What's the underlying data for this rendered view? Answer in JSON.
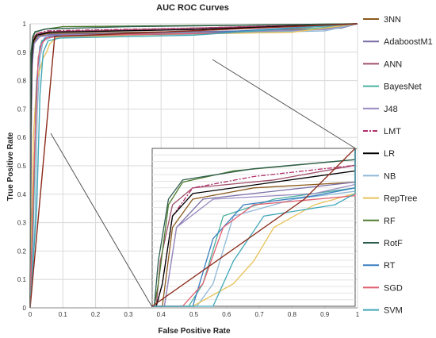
{
  "chart_data": {
    "type": "line",
    "title": "AUC ROC Curves",
    "xlabel": "False Positive Rate",
    "ylabel": "True Positive Rate",
    "xlim": [
      0,
      1
    ],
    "ylim": [
      0,
      1
    ],
    "xticks": [
      "0",
      "0.1",
      "0.2",
      "0.3",
      "0.4",
      "0.5",
      "0.6",
      "0.7",
      "0.8",
      "0.9",
      "1"
    ],
    "yticks": [
      "0",
      "0.1",
      "0.2",
      "0.3",
      "0.4",
      "0.5",
      "0.6",
      "0.7",
      "0.8",
      "0.9",
      "1"
    ],
    "grid": true,
    "legend": "right",
    "inset": "zoomed view of the top-left corner",
    "series": [
      {
        "name": "3NN",
        "color": "#8B5A1E",
        "dash": "",
        "points": [
          [
            0,
            0
          ],
          [
            0.002,
            0.5
          ],
          [
            0.005,
            0.85
          ],
          [
            0.01,
            0.93
          ],
          [
            0.02,
            0.955
          ],
          [
            0.05,
            0.965
          ],
          [
            0.3,
            0.97
          ],
          [
            0.7,
            0.975
          ],
          [
            0.9,
            0.985
          ],
          [
            1,
            1
          ]
        ]
      },
      {
        "name": "AdaboostM1",
        "color": "#7A6FA8",
        "dash": "",
        "points": [
          [
            0,
            0
          ],
          [
            0.003,
            0.6
          ],
          [
            0.006,
            0.85
          ],
          [
            0.012,
            0.93
          ],
          [
            0.025,
            0.955
          ],
          [
            0.06,
            0.962
          ],
          [
            0.4,
            0.97
          ],
          [
            0.8,
            0.978
          ],
          [
            0.95,
            0.985
          ],
          [
            1,
            1
          ]
        ]
      },
      {
        "name": "ANN",
        "color": "#A0516A",
        "dash": "",
        "points": [
          [
            0,
            0
          ],
          [
            0.002,
            0.65
          ],
          [
            0.004,
            0.9
          ],
          [
            0.01,
            0.95
          ],
          [
            0.02,
            0.965
          ],
          [
            0.06,
            0.972
          ],
          [
            0.5,
            0.985
          ],
          [
            1,
            1
          ]
        ]
      },
      {
        "name": "BayesNet",
        "color": "#4AB0A0",
        "dash": "",
        "points": [
          [
            0,
            0
          ],
          [
            0.01,
            0.3
          ],
          [
            0.018,
            0.7
          ],
          [
            0.025,
            0.88
          ],
          [
            0.035,
            0.94
          ],
          [
            0.06,
            0.955
          ],
          [
            0.3,
            0.965
          ],
          [
            0.8,
            0.975
          ],
          [
            1,
            1
          ]
        ]
      },
      {
        "name": "J48",
        "color": "#9A8BC0",
        "dash": "",
        "points": [
          [
            0,
            0
          ],
          [
            0.003,
            0.55
          ],
          [
            0.006,
            0.85
          ],
          [
            0.012,
            0.93
          ],
          [
            0.03,
            0.955
          ],
          [
            0.08,
            0.96
          ],
          [
            0.5,
            0.968
          ],
          [
            0.9,
            0.98
          ],
          [
            1,
            1
          ]
        ]
      },
      {
        "name": "LMT",
        "color": "#B0306A",
        "dash": "6 2 2 2",
        "points": [
          [
            0,
            0
          ],
          [
            0.002,
            0.6
          ],
          [
            0.005,
            0.88
          ],
          [
            0.01,
            0.94
          ],
          [
            0.02,
            0.965
          ],
          [
            0.05,
            0.975
          ],
          [
            0.5,
            0.985
          ],
          [
            1,
            1
          ]
        ]
      },
      {
        "name": "LR",
        "color": "#000000",
        "dash": "",
        "points": [
          [
            0,
            0
          ],
          [
            0.002,
            0.62
          ],
          [
            0.005,
            0.88
          ],
          [
            0.01,
            0.94
          ],
          [
            0.02,
            0.96
          ],
          [
            0.06,
            0.97
          ],
          [
            0.5,
            0.98
          ],
          [
            1,
            1
          ]
        ]
      },
      {
        "name": "NB",
        "color": "#8FB8D8",
        "dash": "",
        "points": [
          [
            0,
            0
          ],
          [
            0.015,
            0.3
          ],
          [
            0.022,
            0.7
          ],
          [
            0.03,
            0.88
          ],
          [
            0.04,
            0.94
          ],
          [
            0.07,
            0.955
          ],
          [
            0.4,
            0.962
          ],
          [
            0.9,
            0.975
          ],
          [
            1,
            1
          ]
        ]
      },
      {
        "name": "RepTree",
        "color": "#E8C25A",
        "dash": "",
        "points": [
          [
            0,
            0
          ],
          [
            0.01,
            0.6
          ],
          [
            0.02,
            0.8
          ],
          [
            0.04,
            0.88
          ],
          [
            0.05,
            0.9
          ],
          [
            0.06,
            0.93
          ],
          [
            0.08,
            0.95
          ],
          [
            0.3,
            0.96
          ],
          [
            0.8,
            0.97
          ],
          [
            1,
            1
          ]
        ]
      },
      {
        "name": "RF",
        "color": "#4E7A2E",
        "dash": "",
        "points": [
          [
            0,
            0
          ],
          [
            0.001,
            0.6
          ],
          [
            0.003,
            0.88
          ],
          [
            0.008,
            0.95
          ],
          [
            0.015,
            0.97
          ],
          [
            0.04,
            0.98
          ],
          [
            0.1,
            0.99
          ],
          [
            0.6,
            0.995
          ],
          [
            1,
            1
          ]
        ]
      },
      {
        "name": "RotF",
        "color": "#2E5E4E",
        "dash": "",
        "points": [
          [
            0,
            0
          ],
          [
            0.001,
            0.65
          ],
          [
            0.003,
            0.9
          ],
          [
            0.008,
            0.955
          ],
          [
            0.015,
            0.972
          ],
          [
            0.05,
            0.982
          ],
          [
            0.3,
            0.99
          ],
          [
            1,
            1
          ]
        ]
      },
      {
        "name": "RT",
        "color": "#3A7FC0",
        "dash": "",
        "points": [
          [
            0,
            0
          ],
          [
            0.01,
            0.4
          ],
          [
            0.02,
            0.8
          ],
          [
            0.03,
            0.92
          ],
          [
            0.045,
            0.95
          ],
          [
            0.08,
            0.958
          ],
          [
            0.5,
            0.965
          ],
          [
            1,
            1
          ]
        ]
      },
      {
        "name": "SGD",
        "color": "#E06070",
        "dash": "",
        "points": [
          [
            0,
            0
          ],
          [
            0.015,
            0.6
          ],
          [
            0.025,
            0.88
          ],
          [
            0.035,
            0.93
          ],
          [
            0.05,
            0.95
          ],
          [
            0.1,
            0.958
          ],
          [
            0.6,
            0.968
          ],
          [
            1,
            1
          ]
        ]
      },
      {
        "name": "SVM",
        "color": "#40A8B8",
        "dash": "",
        "points": [
          [
            0,
            0
          ],
          [
            0.02,
            0.35
          ],
          [
            0.03,
            0.75
          ],
          [
            0.04,
            0.9
          ],
          [
            0.055,
            0.94
          ],
          [
            0.09,
            0.95
          ],
          [
            0.5,
            0.96
          ],
          [
            1,
            1
          ]
        ]
      },
      {
        "name": "",
        "color": "#8B2A1A",
        "dash": "",
        "points": [
          [
            0,
            0
          ],
          [
            0.075,
            0.955
          ],
          [
            1,
            1
          ]
        ]
      }
    ]
  }
}
